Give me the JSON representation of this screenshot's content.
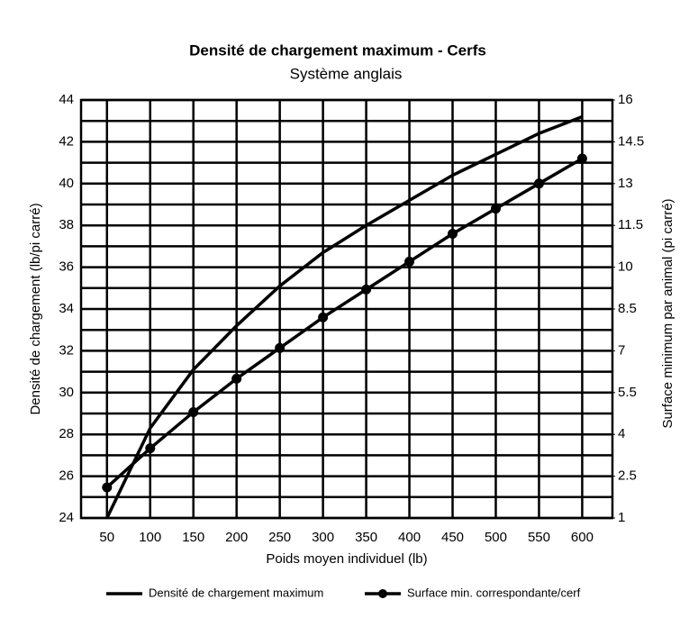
{
  "chart_data": {
    "type": "line",
    "title": "Densité de chargement maximum - Cerfs",
    "subtitle": "Système anglais",
    "x_label": "Poids moyen individuel (lb)",
    "y_label": "Densité de chargement (lb/pi carré)",
    "y2_label": "Surface minimum par animal (pi carré)",
    "x": [
      50,
      100,
      150,
      200,
      250,
      300,
      350,
      400,
      450,
      500,
      550,
      600
    ],
    "xlim": [
      20,
      635
    ],
    "xticks": [
      50,
      100,
      150,
      200,
      250,
      300,
      350,
      400,
      450,
      500,
      550,
      600
    ],
    "ylim": [
      24,
      44
    ],
    "yticks": [
      24,
      26,
      28,
      30,
      32,
      34,
      36,
      38,
      40,
      42,
      44
    ],
    "y2lim": [
      1,
      16
    ],
    "y2ticks": [
      1,
      2.5,
      4,
      5.5,
      7,
      8.5,
      10,
      11.5,
      13,
      14.5,
      16
    ],
    "grid": true,
    "legend": "bottom",
    "series": [
      {
        "name": "Densité de chargement maximum",
        "color": "#000000",
        "marker": false,
        "values": [
          24,
          28.3,
          31.1,
          33.2,
          35.1,
          36.7,
          38.0,
          39.2,
          40.4,
          41.4,
          42.4,
          43.2
        ]
      },
      {
        "name": "Surface min. correspondante/cerf",
        "color": "#000000",
        "marker": true,
        "axis": "y2",
        "values": [
          2.1,
          3.5,
          4.8,
          6.0,
          7.1,
          8.2,
          9.2,
          10.2,
          11.2,
          12.1,
          13.0,
          13.9
        ]
      }
    ]
  }
}
